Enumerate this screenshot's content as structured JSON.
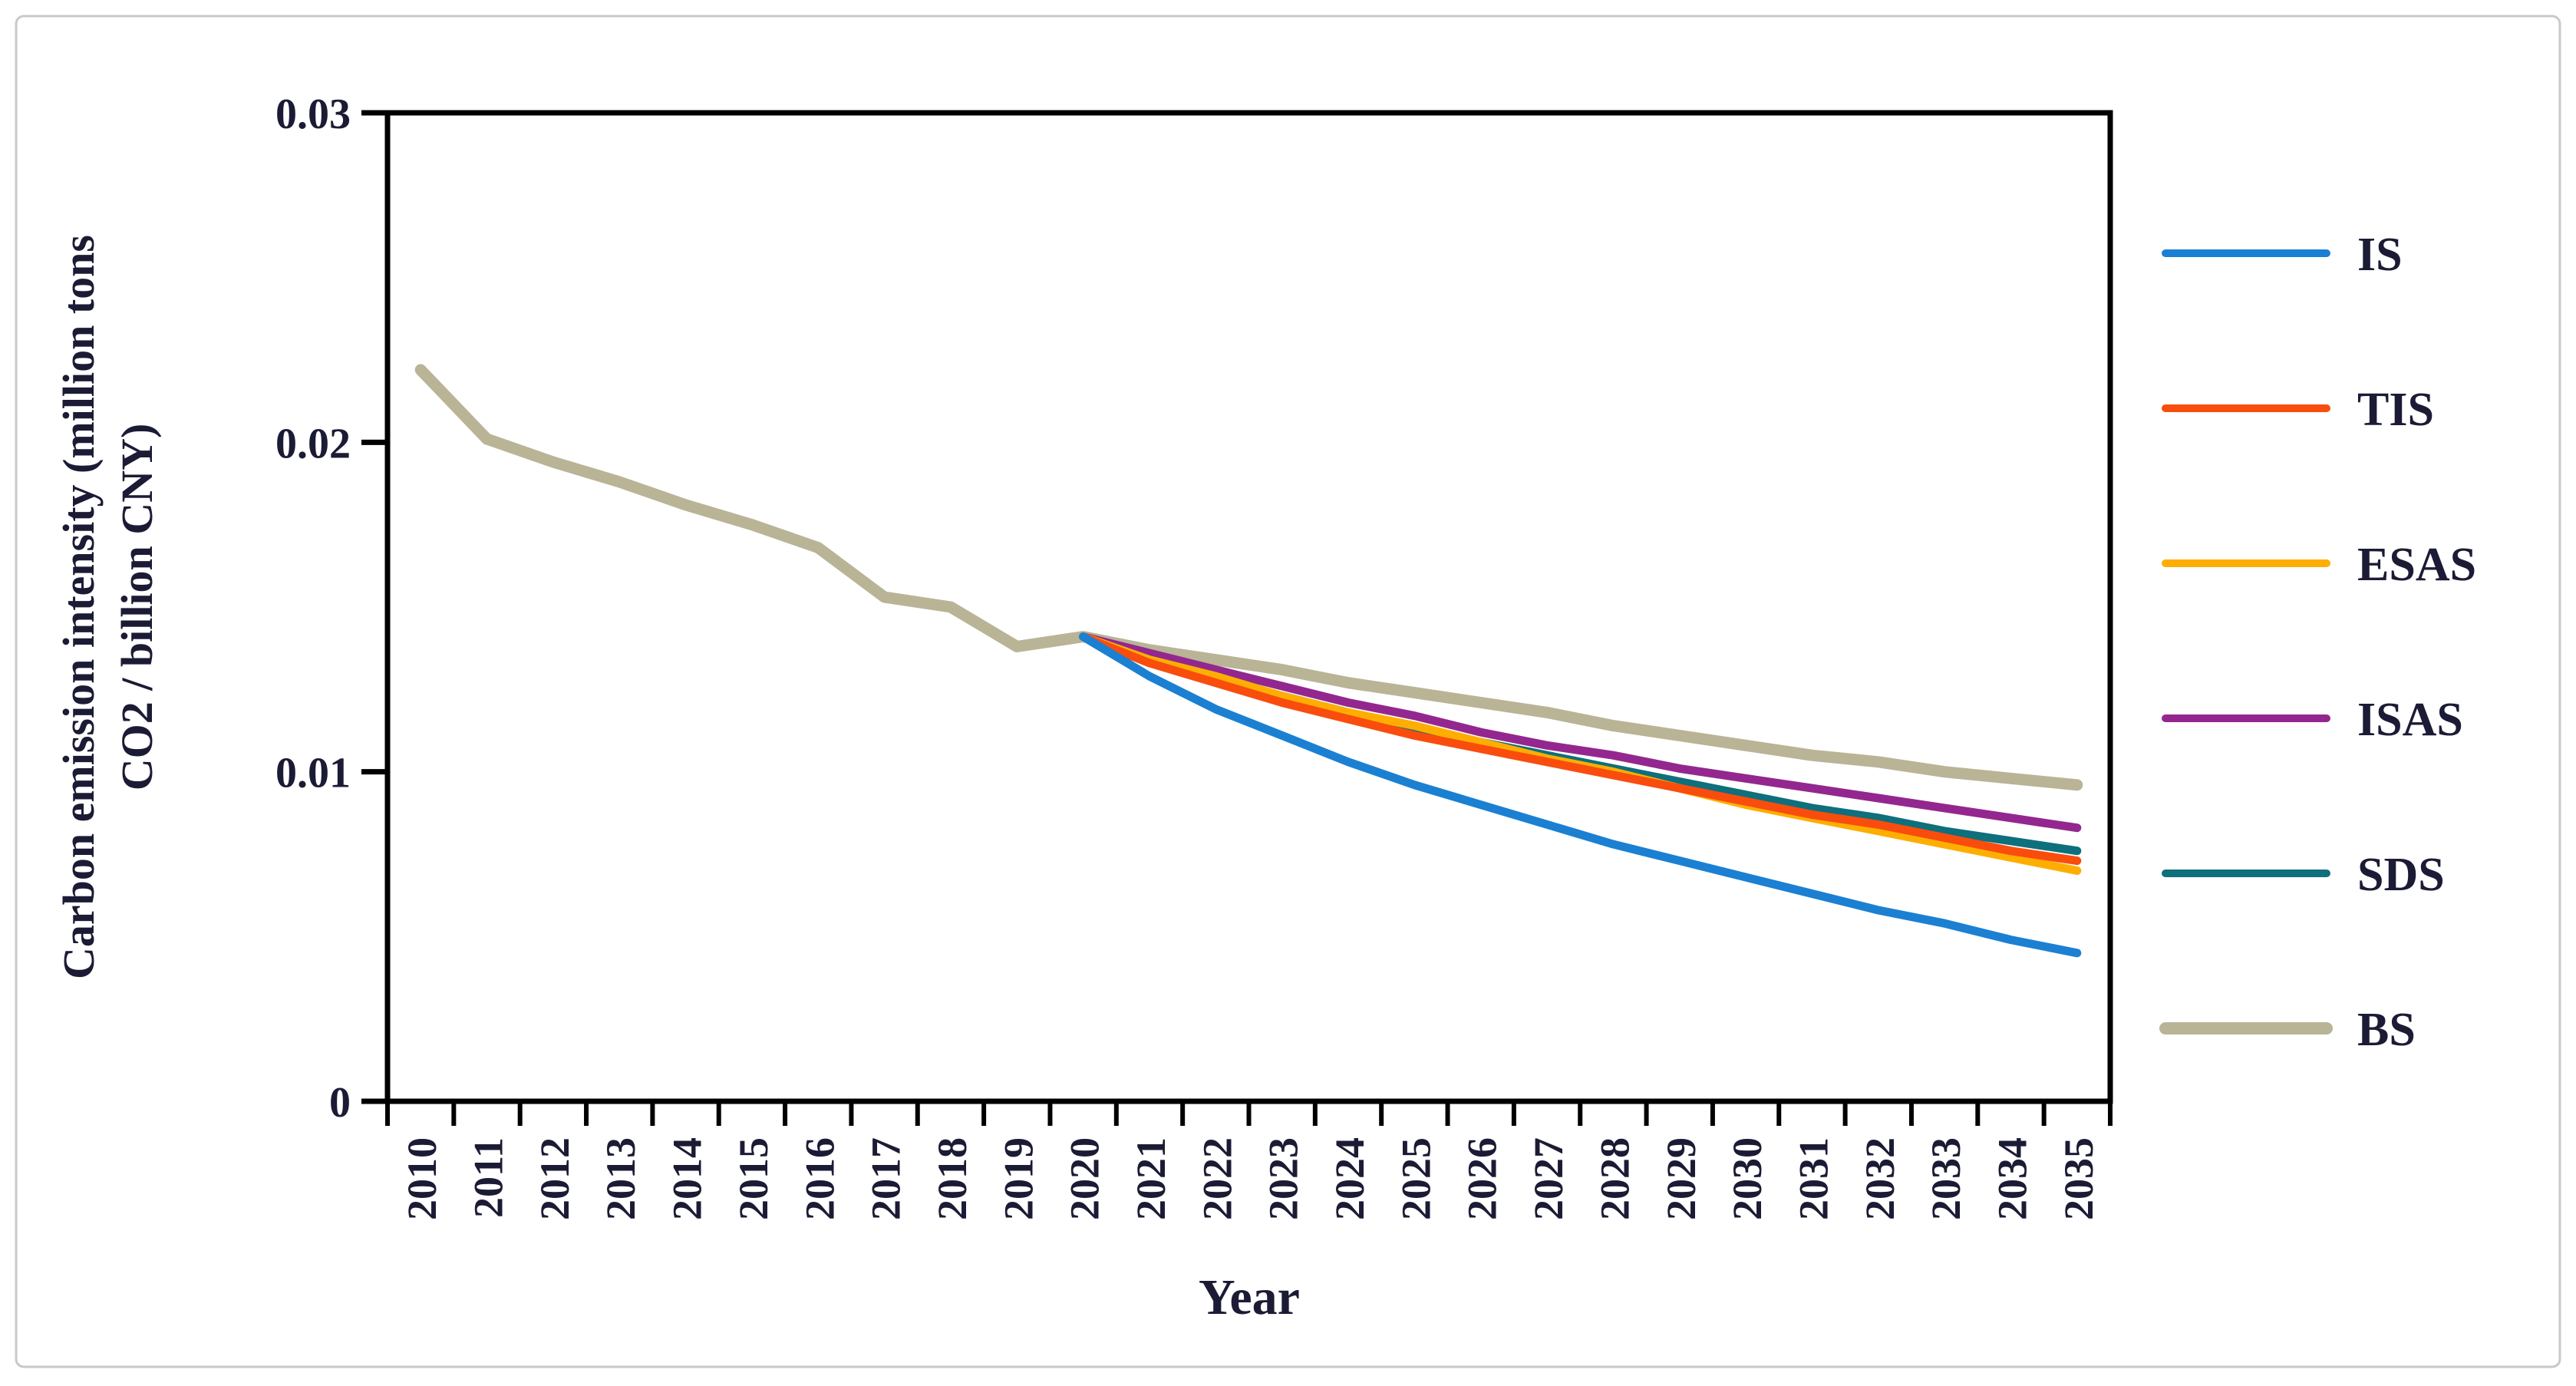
{
  "figure": {
    "background": "#ffffff",
    "border_color": "#c9c9c9",
    "text_color": "#1b1b35",
    "axis_color": "#000000"
  },
  "chart_data": {
    "type": "line",
    "title": "",
    "xlabel": "Year",
    "ylabel": "Carbon emission intensity (million tons CO2 / billion CNY)",
    "ylabel_line1": "Carbon emission intensity (million tons",
    "ylabel_line2": "CO2 / billion CNY)",
    "x_categories": [
      "2010",
      "2011",
      "2012",
      "2013",
      "2014",
      "2015",
      "2016",
      "2017",
      "2018",
      "2019",
      "2020",
      "2021",
      "2022",
      "2023",
      "2024",
      "2025",
      "2026",
      "2027",
      "2028",
      "2029",
      "2030",
      "2031",
      "2032",
      "2033",
      "2034",
      "2035"
    ],
    "ylim": [
      0,
      0.03
    ],
    "ytick_values": [
      0,
      0.01,
      0.02,
      0.03
    ],
    "ytick_labels": [
      "0",
      "0.01",
      "0.02",
      "0.03"
    ],
    "grid": false,
    "legend_position": "right",
    "series": [
      {
        "name": "IS",
        "color": "#1b80d2",
        "width": 11,
        "start_year": "2020",
        "values": [
          0.0141,
          0.0129,
          0.0119,
          0.0111,
          0.0103,
          0.0096,
          0.009,
          0.0084,
          0.0078,
          0.0073,
          0.0068,
          0.0063,
          0.0058,
          0.0054,
          0.0049,
          0.0045
        ]
      },
      {
        "name": "TIS",
        "color": "#f94d0e",
        "width": 11,
        "start_year": "2020",
        "values": [
          0.0141,
          0.0133,
          0.0127,
          0.0121,
          0.0116,
          0.0111,
          0.0107,
          0.0103,
          0.0099,
          0.0095,
          0.0091,
          0.0087,
          0.0084,
          0.008,
          0.0076,
          0.0073
        ]
      },
      {
        "name": "ESAS",
        "color": "#feae02",
        "width": 11,
        "start_year": "2020",
        "values": [
          0.0141,
          0.0134,
          0.0129,
          0.0123,
          0.0118,
          0.0114,
          0.0109,
          0.0104,
          0.01,
          0.0095,
          0.009,
          0.0086,
          0.0082,
          0.0078,
          0.0074,
          0.007
        ]
      },
      {
        "name": "ISAS",
        "color": "#93278f",
        "width": 11,
        "start_year": "2020",
        "values": [
          0.0141,
          0.0136,
          0.0131,
          0.0126,
          0.0121,
          0.0117,
          0.0112,
          0.0108,
          0.0105,
          0.0101,
          0.0098,
          0.0095,
          0.0092,
          0.0089,
          0.0086,
          0.0083
        ]
      },
      {
        "name": "SDS",
        "color": "#0e6f7d",
        "width": 11,
        "start_year": "2020",
        "values": [
          0.0141,
          0.0134,
          0.0128,
          0.0123,
          0.0118,
          0.0113,
          0.0109,
          0.0105,
          0.0101,
          0.0097,
          0.0093,
          0.0089,
          0.0086,
          0.0082,
          0.0079,
          0.0076
        ]
      },
      {
        "name": "BS",
        "color": "#b9b496",
        "width": 15,
        "start_year": "2010",
        "values": [
          0.0222,
          0.0201,
          0.0194,
          0.0188,
          0.0181,
          0.0175,
          0.0168,
          0.0153,
          0.015,
          0.0138,
          0.0141,
          0.0137,
          0.0134,
          0.0131,
          0.0127,
          0.0124,
          0.0121,
          0.0118,
          0.0114,
          0.0111,
          0.0108,
          0.0105,
          0.0103,
          0.01,
          0.0098,
          0.0096
        ]
      }
    ]
  }
}
